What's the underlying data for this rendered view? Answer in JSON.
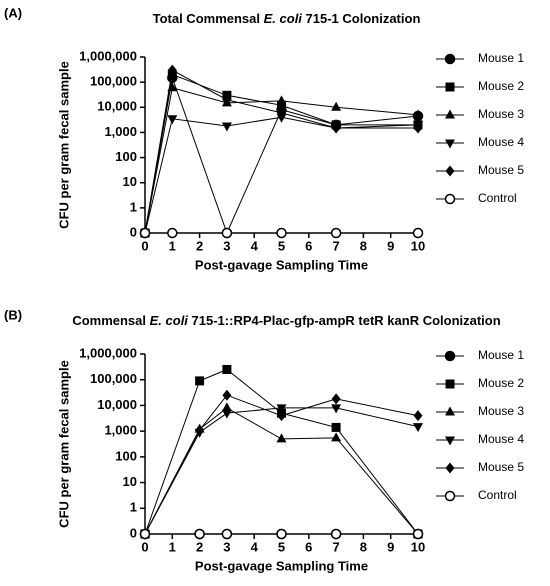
{
  "chart_data": [
    {
      "type": "line",
      "panel_label": "(A)",
      "title": [
        "Total Commensal ",
        "E. coli",
        " 715-1 Colonization"
      ],
      "y_label": "CFU per gram fecal sample",
      "x_label": "Post-gavage Sampling Time",
      "x": [
        0,
        1,
        3,
        5,
        7,
        10
      ],
      "xlim": [
        0,
        10
      ],
      "xticks": [
        0,
        1,
        2,
        3,
        4,
        5,
        6,
        7,
        8,
        9,
        10
      ],
      "ylim": [
        0,
        1000000
      ],
      "yscale": "log",
      "yticks": [
        0,
        1,
        10,
        100,
        {
          "value": 1000,
          "label": "1,000"
        },
        {
          "value": 10000,
          "label": "10,000"
        },
        {
          "value": 100000,
          "label": "100,000"
        },
        {
          "value": 1000000,
          "label": "1,000,000"
        }
      ],
      "series": [
        {
          "name": "Mouse 1",
          "color": "#000000",
          "marker": "circle",
          "values": [
            0,
            150000,
            0,
            8000,
            2000,
            4500
          ]
        },
        {
          "name": "Mouse 2",
          "color": "#000000",
          "marker": "square",
          "values": [
            0,
            200000,
            30000,
            12000,
            2000,
            2000
          ]
        },
        {
          "name": "Mouse 3",
          "color": "#000000",
          "marker": "triangle-up",
          "values": [
            0,
            60000,
            15000,
            18000,
            10000,
            5000
          ]
        },
        {
          "name": "Mouse 4",
          "color": "#000000",
          "marker": "triangle-down",
          "values": [
            0,
            3500,
            1800,
            4000,
            1500,
            2000
          ]
        },
        {
          "name": "Mouse 5",
          "color": "#000000",
          "marker": "diamond",
          "values": [
            0,
            300000,
            20000,
            6000,
            1500,
            1500
          ]
        },
        {
          "name": "Control",
          "color": "#000000",
          "marker": "open-circle",
          "values": [
            0,
            0,
            0,
            0,
            0,
            0
          ]
        }
      ]
    },
    {
      "type": "line",
      "panel_label": "(B)",
      "title": [
        "Commensal ",
        "E. coli",
        " 715-1::RP4-Plac-gfp-ampR tetR kanR Colonization"
      ],
      "y_label": "CFU per gram fecal sample",
      "x_label": "Post-gavage Sampling Time",
      "x": [
        0,
        2,
        3,
        5,
        7,
        10
      ],
      "xlim": [
        0,
        10
      ],
      "xticks": [
        0,
        1,
        2,
        3,
        4,
        5,
        6,
        7,
        8,
        9,
        10
      ],
      "ylim": [
        0,
        1000000
      ],
      "yscale": "log",
      "yticks": [
        0,
        1,
        10,
        100,
        {
          "value": 1000,
          "label": "1,000"
        },
        {
          "value": 10000,
          "label": "10,000"
        },
        {
          "value": 100000,
          "label": "100,000"
        },
        {
          "value": 1000000,
          "label": "1,000,000"
        }
      ],
      "series": [
        {
          "name": "Mouse 1",
          "color": "#000000",
          "marker": "circle",
          "values": [
            0,
            0,
            0,
            0,
            0,
            0
          ]
        },
        {
          "name": "Mouse 2",
          "color": "#000000",
          "marker": "square",
          "values": [
            0,
            90000,
            250000,
            5000,
            1400,
            0
          ]
        },
        {
          "name": "Mouse 3",
          "color": "#000000",
          "marker": "triangle-up",
          "values": [
            0,
            1200,
            8000,
            500,
            550,
            0
          ]
        },
        {
          "name": "Mouse 4",
          "color": "#000000",
          "marker": "triangle-down",
          "values": [
            0,
            900,
            5000,
            8000,
            8000,
            1500
          ]
        },
        {
          "name": "Mouse 5",
          "color": "#000000",
          "marker": "diamond",
          "values": [
            0,
            1100,
            25000,
            4000,
            18000,
            4000
          ]
        },
        {
          "name": "Control",
          "color": "#000000",
          "marker": "open-circle",
          "values": [
            0,
            0,
            0,
            0,
            0,
            0
          ]
        }
      ]
    }
  ]
}
